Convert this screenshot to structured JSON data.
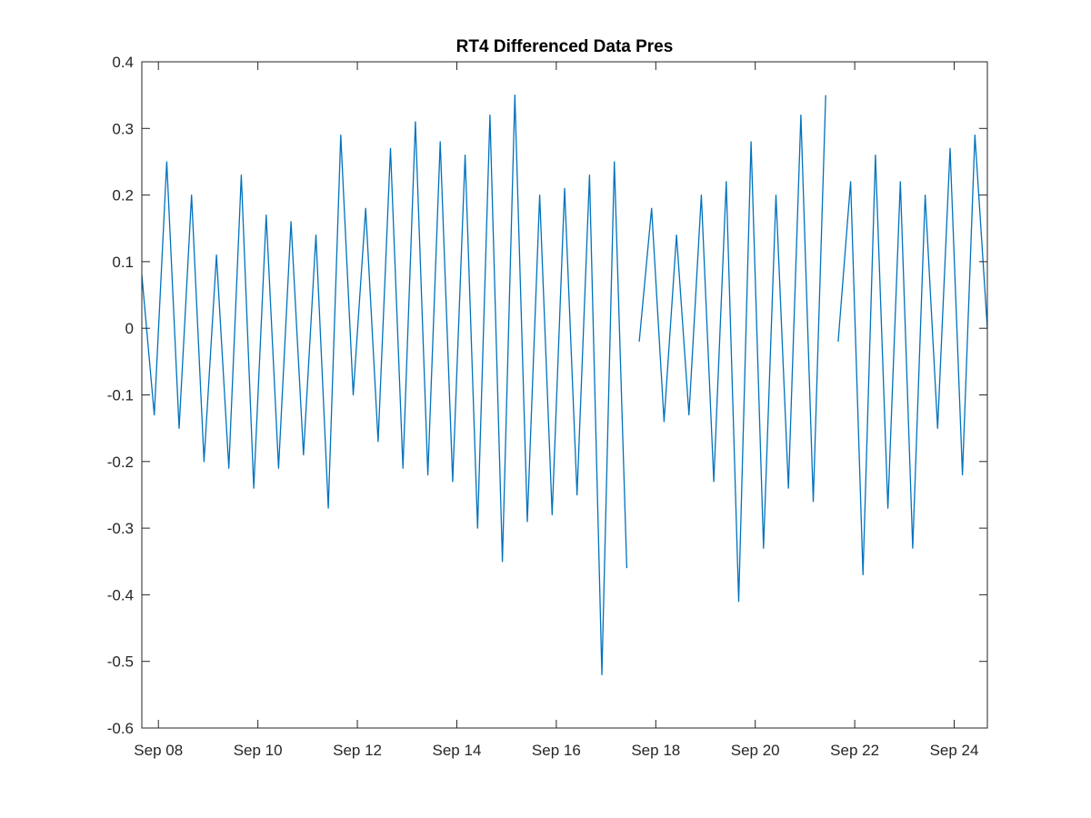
{
  "chart_data": {
    "type": "line",
    "title": "RT4 Differenced Data Pres",
    "xlabel": "",
    "ylabel": "",
    "xlim": [
      "2014-09-07T16:00",
      "2014-09-24T16:00"
    ],
    "ylim": [
      -0.6,
      0.4
    ],
    "yticks": [
      -0.6,
      -0.5,
      -0.4,
      -0.3,
      -0.2,
      -0.1,
      0,
      0.1,
      0.2,
      0.3,
      0.4
    ],
    "ytick_labels": [
      "-0.6",
      "-0.5",
      "-0.4",
      "-0.3",
      "-0.2",
      "-0.1",
      "0",
      "0.1",
      "0.2",
      "0.3",
      "0.4"
    ],
    "xticks": [
      "2014-09-08",
      "2014-09-10",
      "2014-09-12",
      "2014-09-14",
      "2014-09-16",
      "2014-09-18",
      "2014-09-20",
      "2014-09-22",
      "2014-09-24"
    ],
    "xtick_labels": [
      "Sep 08",
      "Sep 10",
      "Sep 12",
      "Sep 14",
      "Sep 16",
      "Sep 18",
      "Sep 20",
      "Sep 22",
      "Sep 24"
    ],
    "grid": false,
    "legend": "none",
    "line_color": "#0072BD",
    "series": [
      {
        "segments": [
          {
            "x": [
              "2014-09-07T16:00",
              "2014-09-07T22:00",
              "2014-09-08T04:00",
              "2014-09-08T10:00",
              "2014-09-08T16:00",
              "2014-09-08T22:00",
              "2014-09-09T04:00",
              "2014-09-09T10:00",
              "2014-09-09T16:00",
              "2014-09-09T22:00",
              "2014-09-10T04:00",
              "2014-09-10T10:00",
              "2014-09-10T16:00",
              "2014-09-10T22:00",
              "2014-09-11T04:00",
              "2014-09-11T10:00",
              "2014-09-11T16:00",
              "2014-09-11T22:00",
              "2014-09-12T04:00",
              "2014-09-12T10:00",
              "2014-09-12T16:00",
              "2014-09-12T22:00",
              "2014-09-13T04:00",
              "2014-09-13T10:00",
              "2014-09-13T16:00",
              "2014-09-13T22:00",
              "2014-09-14T04:00",
              "2014-09-14T10:00",
              "2014-09-14T16:00",
              "2014-09-14T22:00",
              "2014-09-15T04:00",
              "2014-09-15T10:00",
              "2014-09-15T16:00",
              "2014-09-15T22:00",
              "2014-09-16T04:00",
              "2014-09-16T10:00",
              "2014-09-16T16:00",
              "2014-09-16T22:00",
              "2014-09-17T04:00",
              "2014-09-17T10:00"
            ],
            "y": [
              0.08,
              -0.13,
              0.25,
              -0.15,
              0.2,
              -0.2,
              0.11,
              -0.21,
              0.23,
              -0.24,
              0.17,
              -0.21,
              0.16,
              -0.19,
              0.14,
              -0.27,
              0.29,
              -0.1,
              0.18,
              -0.17,
              0.27,
              -0.21,
              0.31,
              -0.22,
              0.28,
              -0.23,
              0.26,
              -0.3,
              0.32,
              -0.35,
              0.35,
              -0.29,
              0.2,
              -0.28,
              0.21,
              -0.25,
              0.23,
              -0.52,
              0.25,
              -0.36
            ]
          },
          {
            "x": [
              "2014-09-17T16:00",
              "2014-09-17T22:00",
              "2014-09-18T04:00",
              "2014-09-18T10:00",
              "2014-09-18T16:00",
              "2014-09-18T22:00",
              "2014-09-19T04:00",
              "2014-09-19T10:00",
              "2014-09-19T16:00",
              "2014-09-19T22:00",
              "2014-09-20T04:00",
              "2014-09-20T10:00",
              "2014-09-20T16:00",
              "2014-09-20T22:00",
              "2014-09-21T04:00",
              "2014-09-21T10:00"
            ],
            "y": [
              -0.02,
              0.18,
              -0.14,
              0.14,
              -0.13,
              0.2,
              -0.23,
              0.22,
              -0.41,
              0.28,
              -0.33,
              0.2,
              -0.24,
              0.32,
              -0.26,
              0.35
            ]
          },
          {
            "x": [
              "2014-09-21T16:00",
              "2014-09-21T22:00",
              "2014-09-22T04:00",
              "2014-09-22T10:00",
              "2014-09-22T16:00",
              "2014-09-22T22:00",
              "2014-09-23T04:00",
              "2014-09-23T10:00",
              "2014-09-23T16:00",
              "2014-09-23T22:00",
              "2014-09-24T04:00",
              "2014-09-24T10:00",
              "2014-09-24T16:00"
            ],
            "y": [
              -0.02,
              0.22,
              -0.37,
              0.26,
              -0.27,
              0.22,
              -0.33,
              0.2,
              -0.15,
              0.27,
              -0.22,
              0.29,
              0.0
            ]
          }
        ]
      }
    ]
  }
}
